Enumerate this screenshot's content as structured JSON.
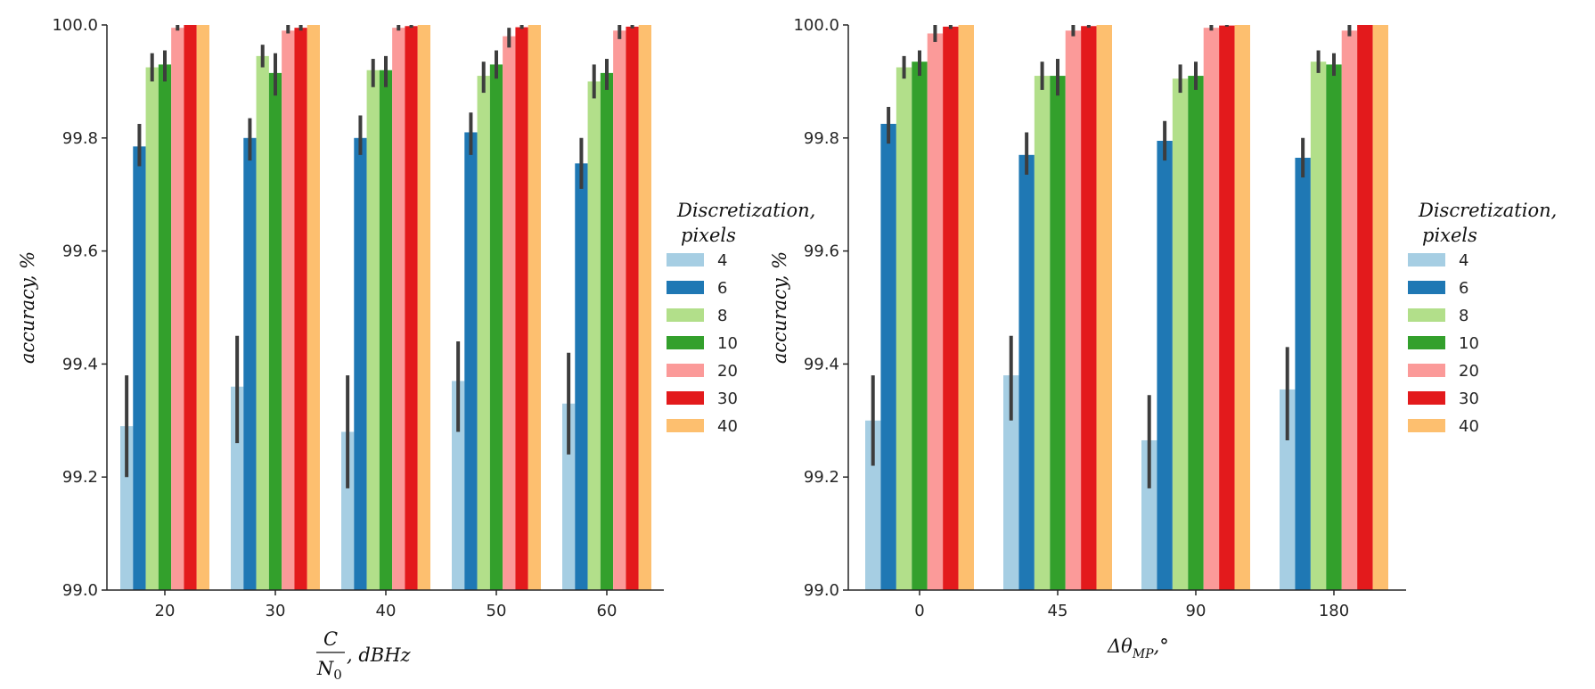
{
  "chart_data": [
    {
      "type": "bar",
      "panel": "left",
      "categories": [
        "20",
        "30",
        "40",
        "50",
        "60"
      ],
      "xlabel": "C / N0, dBHz",
      "xlabel_num": "C",
      "xlabel_den": "N",
      "xlabel_den_sub": "0",
      "xlabel_suffix": ", dBHz",
      "ylabel": "accuracy, %",
      "ylim": [
        99.0,
        100.0
      ],
      "yticks": [
        "99.0",
        "99.2",
        "99.4",
        "99.6",
        "99.8",
        "100.0"
      ],
      "legend_title_line1": "Discretization,",
      "legend_title_line2": "pixels",
      "legend_placement": "right",
      "series": [
        {
          "name": "4",
          "color": "#a6cee3",
          "values": [
            99.29,
            99.36,
            99.28,
            99.37,
            99.33
          ],
          "err_low": [
            99.2,
            99.26,
            99.18,
            99.28,
            99.24
          ],
          "err_high": [
            99.38,
            99.45,
            99.38,
            99.44,
            99.42
          ]
        },
        {
          "name": "6",
          "color": "#1f78b4",
          "values": [
            99.785,
            99.8,
            99.8,
            99.81,
            99.755
          ],
          "err_low": [
            99.75,
            99.76,
            99.77,
            99.77,
            99.71
          ],
          "err_high": [
            99.825,
            99.835,
            99.84,
            99.845,
            99.8
          ]
        },
        {
          "name": "8",
          "color": "#b2df8a",
          "values": [
            99.925,
            99.945,
            99.92,
            99.91,
            99.9
          ],
          "err_low": [
            99.9,
            99.925,
            99.89,
            99.88,
            99.87
          ],
          "err_high": [
            99.95,
            99.965,
            99.94,
            99.935,
            99.93
          ]
        },
        {
          "name": "10",
          "color": "#33a02c",
          "values": [
            99.93,
            99.915,
            99.92,
            99.93,
            99.915
          ],
          "err_low": [
            99.9,
            99.875,
            99.89,
            99.905,
            99.885
          ],
          "err_high": [
            99.955,
            99.95,
            99.945,
            99.955,
            99.94
          ]
        },
        {
          "name": "20",
          "color": "#fb9a99",
          "values": [
            99.995,
            99.99,
            99.995,
            99.98,
            99.99
          ],
          "err_low": [
            99.99,
            99.985,
            99.99,
            99.96,
            99.975
          ],
          "err_high": [
            100.0,
            100.0,
            100.0,
            99.995,
            100.0
          ]
        },
        {
          "name": "30",
          "color": "#e31a1c",
          "values": [
            100.0,
            99.995,
            99.998,
            99.996,
            99.997
          ],
          "err_low": [
            100.0,
            99.99,
            99.995,
            99.993,
            99.994
          ],
          "err_high": [
            100.0,
            100.0,
            100.0,
            100.0,
            100.0
          ]
        },
        {
          "name": "40",
          "color": "#fdbf6f",
          "values": [
            100.0,
            100.0,
            100.0,
            100.0,
            100.0
          ],
          "err_low": [
            100.0,
            100.0,
            100.0,
            100.0,
            100.0
          ],
          "err_high": [
            100.0,
            100.0,
            100.0,
            100.0,
            100.0
          ]
        }
      ]
    },
    {
      "type": "bar",
      "panel": "right",
      "categories": [
        "0",
        "45",
        "90",
        "180"
      ],
      "xlabel": "Δθ_MP, °",
      "xlabel_main": "Δθ",
      "xlabel_sub": "MP",
      "xlabel_suffix": ",°",
      "ylabel": "accuracy, %",
      "ylim": [
        99.0,
        100.0
      ],
      "yticks": [
        "99.0",
        "99.2",
        "99.4",
        "99.6",
        "99.8",
        "100.0"
      ],
      "legend_title_line1": "Discretization,",
      "legend_title_line2": "pixels",
      "legend_placement": "right",
      "series": [
        {
          "name": "4",
          "color": "#a6cee3",
          "values": [
            99.3,
            99.38,
            99.265,
            99.355
          ],
          "err_low": [
            99.22,
            99.3,
            99.18,
            99.265
          ],
          "err_high": [
            99.38,
            99.45,
            99.345,
            99.43
          ]
        },
        {
          "name": "6",
          "color": "#1f78b4",
          "values": [
            99.825,
            99.77,
            99.795,
            99.765
          ],
          "err_low": [
            99.79,
            99.735,
            99.76,
            99.73
          ],
          "err_high": [
            99.855,
            99.81,
            99.83,
            99.8
          ]
        },
        {
          "name": "8",
          "color": "#b2df8a",
          "values": [
            99.925,
            99.91,
            99.905,
            99.935
          ],
          "err_low": [
            99.905,
            99.885,
            99.88,
            99.915
          ],
          "err_high": [
            99.945,
            99.935,
            99.93,
            99.955
          ]
        },
        {
          "name": "10",
          "color": "#33a02c",
          "values": [
            99.935,
            99.91,
            99.91,
            99.93
          ],
          "err_low": [
            99.91,
            99.875,
            99.885,
            99.91
          ],
          "err_high": [
            99.955,
            99.94,
            99.935,
            99.95
          ]
        },
        {
          "name": "20",
          "color": "#fb9a99",
          "values": [
            99.985,
            99.99,
            99.995,
            99.99
          ],
          "err_low": [
            99.97,
            99.98,
            99.99,
            99.98
          ],
          "err_high": [
            100.0,
            100.0,
            100.0,
            100.0
          ]
        },
        {
          "name": "30",
          "color": "#e31a1c",
          "values": [
            99.997,
            99.998,
            99.999,
            100.0
          ],
          "err_low": [
            99.993,
            99.995,
            99.997,
            100.0
          ],
          "err_high": [
            100.0,
            100.0,
            100.0,
            100.0
          ]
        },
        {
          "name": "40",
          "color": "#fdbf6f",
          "values": [
            100.0,
            100.0,
            100.0,
            100.0
          ],
          "err_low": [
            100.0,
            100.0,
            100.0,
            100.0
          ],
          "err_high": [
            100.0,
            100.0,
            100.0,
            100.0
          ]
        }
      ]
    }
  ]
}
